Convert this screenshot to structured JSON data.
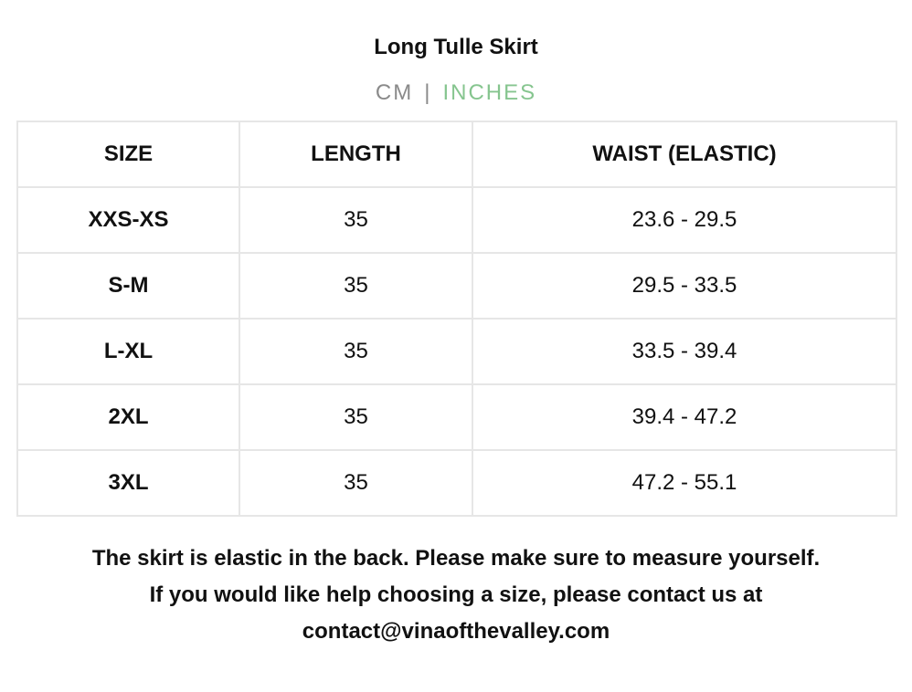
{
  "title": "Long Tulle Skirt",
  "units": {
    "cm": "CM",
    "separator": "|",
    "inches": "INCHES",
    "active": "inches",
    "active_color": "#86c58f",
    "inactive_color": "#8a8a8a"
  },
  "table": {
    "headers": [
      "SIZE",
      "LENGTH",
      "WAIST (ELASTIC)"
    ],
    "rows": [
      [
        "XXS-XS",
        "35",
        "23.6 - 29.5"
      ],
      [
        "S-M",
        "35",
        "29.5 - 33.5"
      ],
      [
        "L-XL",
        "35",
        "33.5 - 39.4"
      ],
      [
        "2XL",
        "35",
        "39.4 - 47.2"
      ],
      [
        "3XL",
        "35",
        "47.2 - 55.1"
      ]
    ]
  },
  "note": {
    "line1": "The skirt is elastic in the back. Please make sure to measure yourself.",
    "line2": "If you would like help choosing a size, please contact us at",
    "line3": "contact@vinaofthevalley.com"
  }
}
